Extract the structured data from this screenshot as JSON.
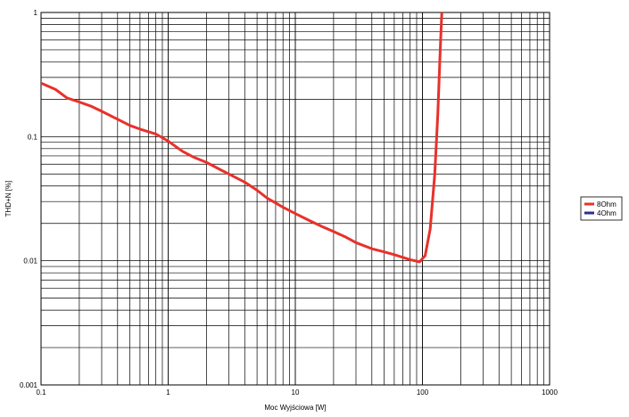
{
  "chart_data": {
    "type": "line",
    "title": "",
    "xlabel": "Moc Wyjściowa [W]",
    "ylabel": "THD+N [%]",
    "x_scale": "log",
    "y_scale": "log",
    "xlim": [
      0.1,
      1000
    ],
    "ylim": [
      0.001,
      1
    ],
    "x_tick_labels": [
      "0.1",
      "1",
      "10",
      "100",
      "1000"
    ],
    "y_tick_labels": [
      "0.001",
      "0.01",
      "0.1",
      "1"
    ],
    "grid": true,
    "legend_position": "right",
    "series": [
      {
        "name": "8Ohm",
        "color": "#e8312a",
        "points": [
          [
            0.1,
            0.27
          ],
          [
            0.13,
            0.24
          ],
          [
            0.16,
            0.205
          ],
          [
            0.2,
            0.19
          ],
          [
            0.25,
            0.175
          ],
          [
            0.3,
            0.16
          ],
          [
            0.4,
            0.138
          ],
          [
            0.5,
            0.123
          ],
          [
            0.6,
            0.115
          ],
          [
            0.8,
            0.105
          ],
          [
            1.0,
            0.092
          ],
          [
            1.3,
            0.076
          ],
          [
            1.6,
            0.068
          ],
          [
            2.0,
            0.062
          ],
          [
            2.5,
            0.055
          ],
          [
            3.0,
            0.05
          ],
          [
            4.0,
            0.043
          ],
          [
            5.0,
            0.037
          ],
          [
            6.0,
            0.032
          ],
          [
            8.0,
            0.027
          ],
          [
            10,
            0.024
          ],
          [
            13,
            0.021
          ],
          [
            16,
            0.019
          ],
          [
            20,
            0.0172
          ],
          [
            25,
            0.0155
          ],
          [
            30,
            0.014
          ],
          [
            40,
            0.0125
          ],
          [
            50,
            0.0118
          ],
          [
            60,
            0.0112
          ],
          [
            80,
            0.0102
          ],
          [
            95,
            0.0098
          ],
          [
            105,
            0.011
          ],
          [
            115,
            0.018
          ],
          [
            125,
            0.05
          ],
          [
            132,
            0.15
          ],
          [
            138,
            0.5
          ],
          [
            142,
            1.0
          ]
        ]
      },
      {
        "name": "4Ohm",
        "color": "#2a2f8c",
        "points": []
      }
    ]
  }
}
